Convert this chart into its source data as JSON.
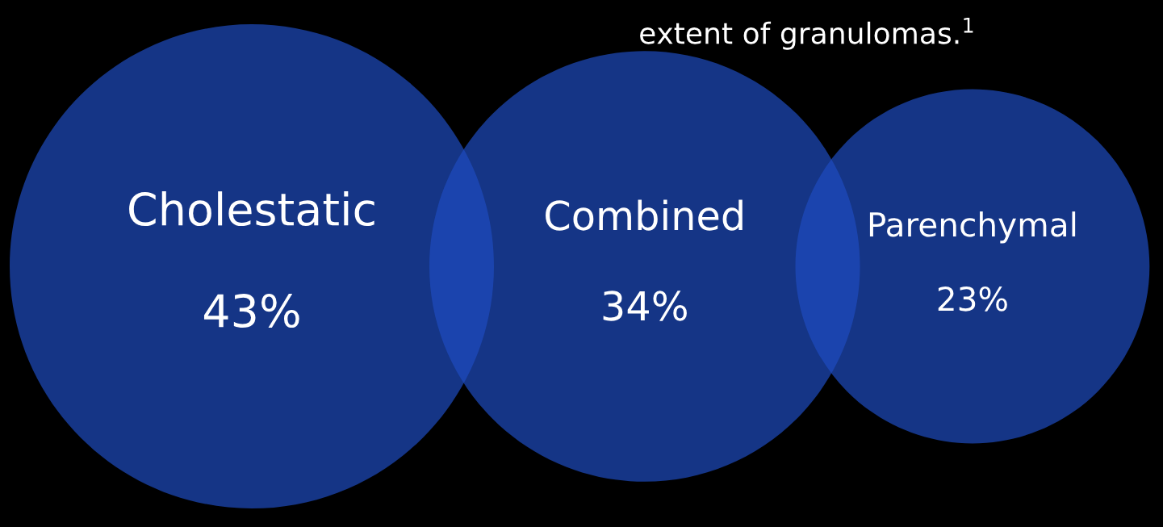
{
  "chart_data": {
    "type": "other",
    "categories": [
      "Cholestatic",
      "Combined",
      "Parenchymal"
    ],
    "values": [
      43,
      34,
      23
    ],
    "value_labels": [
      "43%",
      "34%",
      "23%"
    ],
    "colors": [
      "#1e4bbf",
      "#1e4bbf",
      "#1e4bbf"
    ],
    "annotations": [
      "extent of granulomas.$^{1}$"
    ]
  }
}
